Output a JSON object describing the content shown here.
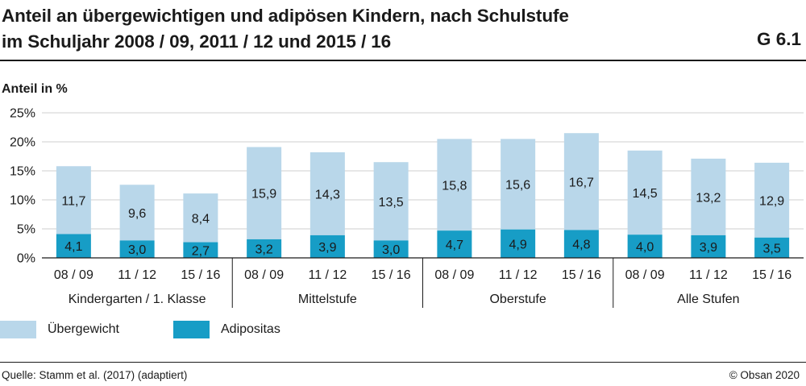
{
  "header": {
    "title_line1": "Anteil an übergewichtigen und adipösen Kindern, nach Schulstufe",
    "title_line2": "im Schuljahr 2008 / 09, 2011 / 12 und 2015 / 16",
    "figure_number": "G 6.1"
  },
  "footer": {
    "source": "Quelle: Stamm et al. (2017) (adaptiert)",
    "copyright": "© Obsan 2020"
  },
  "legend": [
    {
      "label": "Übergewicht",
      "color": "#b9d7ea"
    },
    {
      "label": "Adipositas",
      "color": "#179dc6"
    }
  ],
  "chart_data": {
    "type": "bar",
    "stacked": true,
    "ylabel": "Anteil in %",
    "ylim": [
      0,
      25
    ],
    "yticks": [
      0,
      5,
      10,
      15,
      20,
      25
    ],
    "ytick_labels": [
      "0%",
      "5%",
      "10%",
      "15%",
      "20%",
      "25%"
    ],
    "grid": true,
    "value_format": "decimal-comma",
    "groups": [
      {
        "label": "Kindergarten / 1. Klasse",
        "categories": [
          "08 / 09",
          "11 / 12",
          "15 / 16"
        ]
      },
      {
        "label": "Mittelstufe",
        "categories": [
          "08 / 09",
          "11 / 12",
          "15 / 16"
        ]
      },
      {
        "label": "Oberstufe",
        "categories": [
          "08 / 09",
          "11 / 12",
          "15 / 16"
        ]
      },
      {
        "label": "Alle Stufen",
        "categories": [
          "08 / 09",
          "11 / 12",
          "15 / 16"
        ]
      }
    ],
    "series": [
      {
        "name": "Adipositas",
        "color": "#179dc6",
        "values": [
          4.1,
          3.0,
          2.7,
          3.2,
          3.9,
          3.0,
          4.7,
          4.9,
          4.8,
          4.0,
          3.9,
          3.5
        ]
      },
      {
        "name": "Übergewicht",
        "color": "#b9d7ea",
        "values": [
          11.7,
          9.6,
          8.4,
          15.9,
          14.3,
          13.5,
          15.8,
          15.6,
          16.7,
          14.5,
          13.2,
          12.9
        ]
      }
    ]
  }
}
